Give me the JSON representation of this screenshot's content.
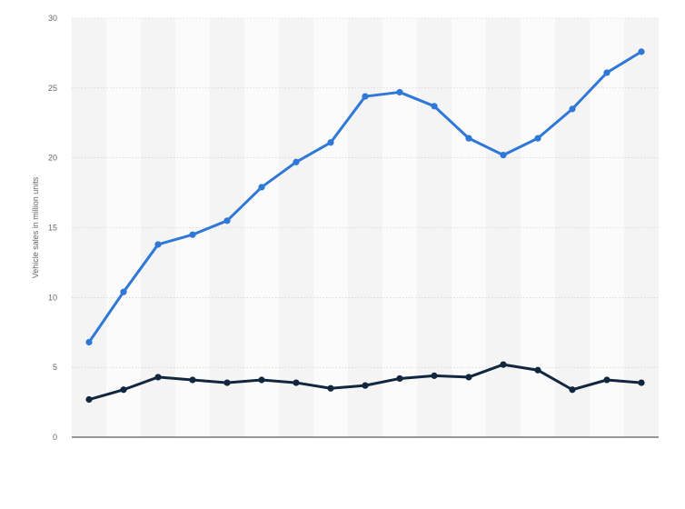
{
  "chart_data": {
    "type": "line",
    "title": "",
    "xlabel": "",
    "ylabel": "Vehicle sales in million units",
    "ylim": [
      0,
      30
    ],
    "yticks": [
      0,
      5,
      10,
      15,
      20,
      25,
      30
    ],
    "grid": true,
    "legend": "none",
    "x": [
      1,
      2,
      3,
      4,
      5,
      6,
      7,
      8,
      9,
      10,
      11,
      12,
      13,
      14,
      15,
      16,
      17
    ],
    "series": [
      {
        "color": "#2f78d8",
        "values": [
          6.8,
          10.4,
          13.8,
          14.5,
          15.5,
          17.9,
          19.7,
          21.1,
          24.4,
          24.7,
          23.7,
          21.4,
          20.2,
          21.4,
          23.5,
          26.1,
          27.6
        ]
      },
      {
        "color": "#10273f",
        "values": [
          2.7,
          3.4,
          4.3,
          4.1,
          3.9,
          4.1,
          3.9,
          3.5,
          3.7,
          4.2,
          4.4,
          4.3,
          5.2,
          4.8,
          3.4,
          4.1,
          3.9
        ]
      }
    ]
  }
}
